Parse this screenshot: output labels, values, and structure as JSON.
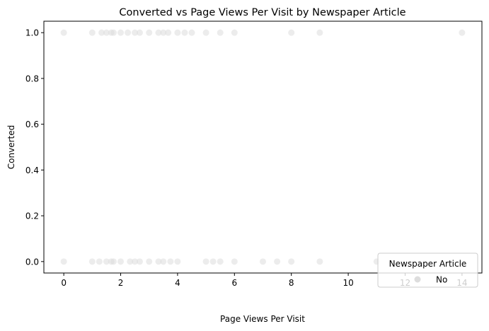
{
  "chart_data": {
    "type": "scatter",
    "title": "Converted vs Page Views Per Visit by Newspaper Article",
    "xlabel": "Page Views Per Visit",
    "ylabel": "Converted",
    "xlim": [
      -0.7,
      14.7
    ],
    "ylim": [
      -0.05,
      1.05
    ],
    "xticks": [
      0,
      2,
      4,
      6,
      8,
      10,
      12,
      14
    ],
    "yticks": [
      0.0,
      0.2,
      0.4,
      0.6,
      0.8,
      1.0
    ],
    "ytick_labels": [
      "0.0",
      "0.2",
      "0.4",
      "0.6",
      "0.8",
      "1.0"
    ],
    "grid": false,
    "legend": {
      "title": "Newspaper Article",
      "placement": "lower-right"
    },
    "series": [
      {
        "name": "No",
        "color": "#dddddd",
        "alpha": 0.55,
        "points": [
          {
            "x": 0,
            "y": 1
          },
          {
            "x": 1,
            "y": 1
          },
          {
            "x": 1.33,
            "y": 1
          },
          {
            "x": 1.5,
            "y": 1
          },
          {
            "x": 1.67,
            "y": 1
          },
          {
            "x": 1.75,
            "y": 1
          },
          {
            "x": 2,
            "y": 1
          },
          {
            "x": 2.25,
            "y": 1
          },
          {
            "x": 2.5,
            "y": 1
          },
          {
            "x": 2.67,
            "y": 1
          },
          {
            "x": 3,
            "y": 1
          },
          {
            "x": 3.33,
            "y": 1
          },
          {
            "x": 3.5,
            "y": 1
          },
          {
            "x": 3.67,
            "y": 1
          },
          {
            "x": 4,
            "y": 1
          },
          {
            "x": 4.25,
            "y": 1
          },
          {
            "x": 4.5,
            "y": 1
          },
          {
            "x": 5,
            "y": 1
          },
          {
            "x": 5.5,
            "y": 1
          },
          {
            "x": 6,
            "y": 1
          },
          {
            "x": 8,
            "y": 1
          },
          {
            "x": 9,
            "y": 1
          },
          {
            "x": 14,
            "y": 1
          },
          {
            "x": 0,
            "y": 0
          },
          {
            "x": 1,
            "y": 0
          },
          {
            "x": 1.25,
            "y": 0
          },
          {
            "x": 1.5,
            "y": 0
          },
          {
            "x": 1.67,
            "y": 0
          },
          {
            "x": 1.75,
            "y": 0
          },
          {
            "x": 2,
            "y": 0
          },
          {
            "x": 2.33,
            "y": 0
          },
          {
            "x": 2.5,
            "y": 0
          },
          {
            "x": 2.67,
            "y": 0
          },
          {
            "x": 3,
            "y": 0
          },
          {
            "x": 3.33,
            "y": 0
          },
          {
            "x": 3.5,
            "y": 0
          },
          {
            "x": 3.75,
            "y": 0
          },
          {
            "x": 4,
            "y": 0
          },
          {
            "x": 5,
            "y": 0
          },
          {
            "x": 5.25,
            "y": 0
          },
          {
            "x": 5.5,
            "y": 0
          },
          {
            "x": 6,
            "y": 0
          },
          {
            "x": 7,
            "y": 0
          },
          {
            "x": 7.5,
            "y": 0
          },
          {
            "x": 8,
            "y": 0
          },
          {
            "x": 9,
            "y": 0
          },
          {
            "x": 11,
            "y": 0
          }
        ]
      }
    ]
  }
}
